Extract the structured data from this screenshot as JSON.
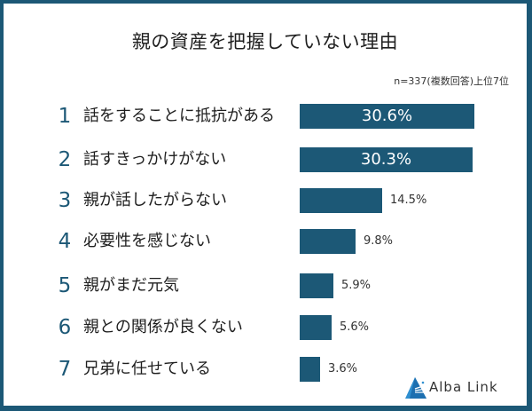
{
  "title": "親の資産を把握していない理由",
  "note": "n=337(複数回答)上位7位",
  "brand": {
    "name": "Alba Link",
    "icon": "alba-link-logo-icon"
  },
  "colors": {
    "bar": "#1c5876",
    "frame": "#1c5876",
    "background": "#ffffff"
  },
  "rows": [
    {
      "rank": "1",
      "label": "話をすることに抵抗がある",
      "value_text": "30.6%"
    },
    {
      "rank": "2",
      "label": "話すきっかけがない",
      "value_text": "30.3%"
    },
    {
      "rank": "3",
      "label": "親が話したがらない",
      "value_text": "14.5%"
    },
    {
      "rank": "4",
      "label": "必要性を感じない",
      "value_text": "9.8%"
    },
    {
      "rank": "5",
      "label": "親がまだ元気",
      "value_text": "5.9%"
    },
    {
      "rank": "6",
      "label": "親との関係が良くない",
      "value_text": "5.6%"
    },
    {
      "rank": "7",
      "label": "兄弟に任せている",
      "value_text": "3.6%"
    }
  ],
  "chart_data": {
    "type": "bar",
    "orientation": "horizontal",
    "title": "親の資産を把握していない理由",
    "subtitle": "n=337(複数回答)上位7位",
    "categories": [
      "話をすることに抵抗がある",
      "話すきっかけがない",
      "親が話したがらない",
      "必要性を感じない",
      "親がまだ元気",
      "親との関係が良くない",
      "兄弟に任せている"
    ],
    "values": [
      30.6,
      30.3,
      14.5,
      9.8,
      5.9,
      5.6,
      3.6
    ],
    "unit": "%",
    "xlabel": "",
    "ylabel": "",
    "grid": false,
    "legend": null
  }
}
